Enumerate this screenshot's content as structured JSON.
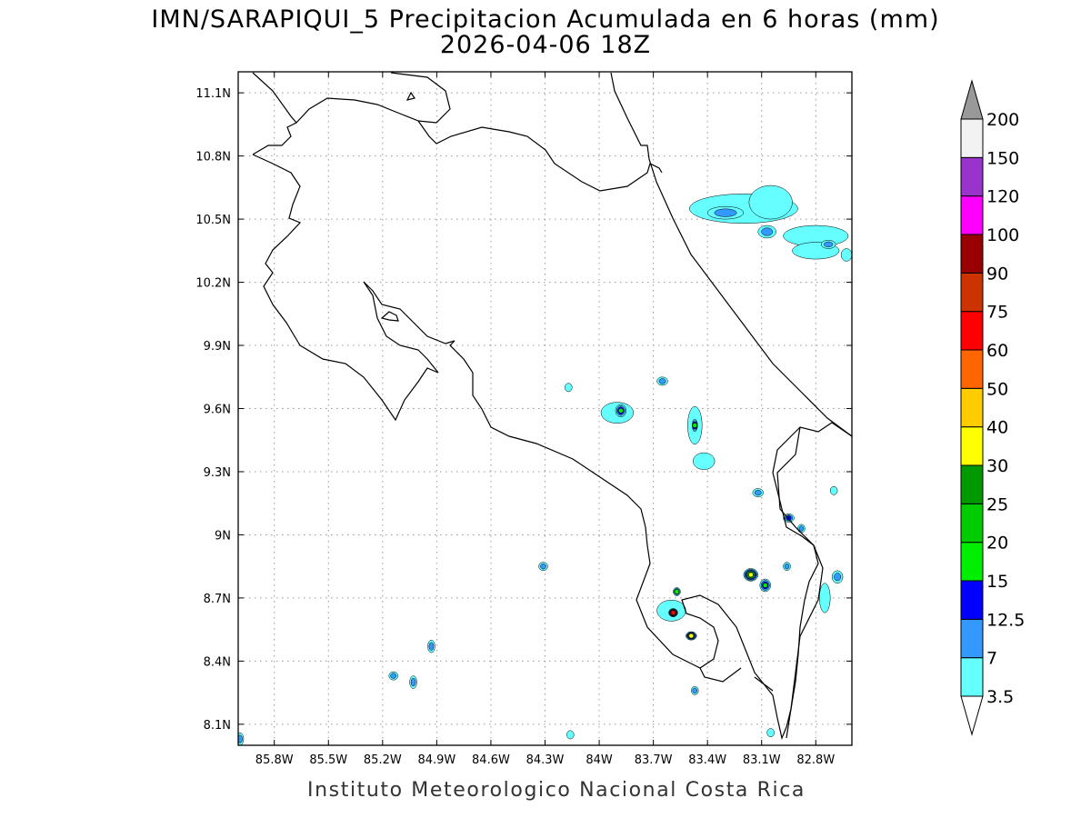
{
  "title": {
    "line1": "IMN/SARAPIQUI_5 Precipitacion Acumulada en 6 horas (mm)",
    "line2": "2026-04-06 18Z"
  },
  "credit": "Instituto Meteorologico Nacional Costa Rica",
  "map": {
    "lon_range": [
      -86.0,
      -82.6
    ],
    "lat_range": [
      8.0,
      11.2
    ],
    "lon_ticks": [
      {
        "v": -85.8,
        "label": "85.8W"
      },
      {
        "v": -85.5,
        "label": "85.5W"
      },
      {
        "v": -85.2,
        "label": "85.2W"
      },
      {
        "v": -84.9,
        "label": "84.9W"
      },
      {
        "v": -84.6,
        "label": "84.6W"
      },
      {
        "v": -84.3,
        "label": "84.3W"
      },
      {
        "v": -84.0,
        "label": "84W"
      },
      {
        "v": -83.7,
        "label": "83.7W"
      },
      {
        "v": -83.4,
        "label": "83.4W"
      },
      {
        "v": -83.1,
        "label": "83.1W"
      },
      {
        "v": -82.8,
        "label": "82.8W"
      }
    ],
    "lat_ticks": [
      {
        "v": 8.1,
        "label": "8.1N"
      },
      {
        "v": 8.4,
        "label": "8.4N"
      },
      {
        "v": 8.7,
        "label": "8.7N"
      },
      {
        "v": 9.0,
        "label": "9N"
      },
      {
        "v": 9.3,
        "label": "9.3N"
      },
      {
        "v": 9.6,
        "label": "9.6N"
      },
      {
        "v": 9.9,
        "label": "9.9N"
      },
      {
        "v": 10.2,
        "label": "10.2N"
      },
      {
        "v": 10.5,
        "label": "10.5N"
      },
      {
        "v": 10.8,
        "label": "10.8N"
      },
      {
        "v": 11.1,
        "label": "11.1N"
      }
    ],
    "grid": true
  },
  "colorbar": {
    "labels": [
      "3.5",
      "7",
      "12.5",
      "15",
      "20",
      "25",
      "30",
      "40",
      "50",
      "60",
      "75",
      "90",
      "100",
      "120",
      "150",
      "200"
    ],
    "colors": [
      "#66ffff",
      "#3399ff",
      "#0000ff",
      "#00ee00",
      "#00cc00",
      "#009900",
      "#ffff00",
      "#ffcc00",
      "#ff6600",
      "#ff0000",
      "#cc3300",
      "#990000",
      "#ff00ff",
      "#9933cc",
      "#f2f2f2",
      "#999999"
    ]
  },
  "precip_cells": [
    {
      "lon": -83.2,
      "lat": 10.55,
      "level": 0,
      "rx": 0.3,
      "ry": 0.07
    },
    {
      "lon": -83.05,
      "lat": 10.58,
      "level": 0,
      "rx": 0.12,
      "ry": 0.08
    },
    {
      "lon": -83.3,
      "lat": 10.53,
      "level": 1,
      "rx": 0.1,
      "ry": 0.03
    },
    {
      "lon": -83.07,
      "lat": 10.44,
      "level": 1,
      "rx": 0.05,
      "ry": 0.03
    },
    {
      "lon": -82.8,
      "lat": 10.42,
      "level": 0,
      "rx": 0.18,
      "ry": 0.05
    },
    {
      "lon": -82.8,
      "lat": 10.35,
      "level": 0,
      "rx": 0.13,
      "ry": 0.04
    },
    {
      "lon": -82.73,
      "lat": 10.38,
      "level": 1,
      "rx": 0.04,
      "ry": 0.02
    },
    {
      "lon": -82.63,
      "lat": 10.33,
      "level": 0,
      "rx": 0.03,
      "ry": 0.03
    },
    {
      "lon": -83.9,
      "lat": 9.58,
      "level": 0,
      "rx": 0.09,
      "ry": 0.05
    },
    {
      "lon": -83.88,
      "lat": 9.59,
      "level": 3,
      "rx": 0.03,
      "ry": 0.03
    },
    {
      "lon": -83.47,
      "lat": 9.52,
      "level": 0,
      "rx": 0.04,
      "ry": 0.09
    },
    {
      "lon": -83.47,
      "lat": 9.52,
      "level": 3,
      "rx": 0.015,
      "ry": 0.03
    },
    {
      "lon": -83.65,
      "lat": 9.73,
      "level": 1,
      "rx": 0.03,
      "ry": 0.02
    },
    {
      "lon": -84.17,
      "lat": 9.7,
      "level": 0,
      "rx": 0.02,
      "ry": 0.02
    },
    {
      "lon": -83.42,
      "lat": 9.35,
      "level": 0,
      "rx": 0.06,
      "ry": 0.04
    },
    {
      "lon": -83.12,
      "lat": 9.2,
      "level": 1,
      "rx": 0.03,
      "ry": 0.02
    },
    {
      "lon": -82.95,
      "lat": 9.08,
      "level": 2,
      "rx": 0.03,
      "ry": 0.02
    },
    {
      "lon": -82.88,
      "lat": 9.03,
      "level": 1,
      "rx": 0.02,
      "ry": 0.02
    },
    {
      "lon": -84.31,
      "lat": 8.85,
      "level": 1,
      "rx": 0.025,
      "ry": 0.02
    },
    {
      "lon": -83.6,
      "lat": 8.64,
      "level": 0,
      "rx": 0.08,
      "ry": 0.05
    },
    {
      "lon": -83.59,
      "lat": 8.63,
      "level": 9,
      "rx": 0.025,
      "ry": 0.02
    },
    {
      "lon": -83.57,
      "lat": 8.73,
      "level": 3,
      "rx": 0.02,
      "ry": 0.02
    },
    {
      "lon": -83.49,
      "lat": 8.52,
      "level": 6,
      "rx": 0.03,
      "ry": 0.02
    },
    {
      "lon": -83.16,
      "lat": 8.81,
      "level": 6,
      "rx": 0.04,
      "ry": 0.03
    },
    {
      "lon": -83.08,
      "lat": 8.76,
      "level": 3,
      "rx": 0.03,
      "ry": 0.03
    },
    {
      "lon": -82.96,
      "lat": 8.85,
      "level": 1,
      "rx": 0.02,
      "ry": 0.02
    },
    {
      "lon": -82.68,
      "lat": 8.8,
      "level": 1,
      "rx": 0.03,
      "ry": 0.03
    },
    {
      "lon": -82.75,
      "lat": 8.7,
      "level": 0,
      "rx": 0.03,
      "ry": 0.07
    },
    {
      "lon": -84.93,
      "lat": 8.47,
      "level": 1,
      "rx": 0.02,
      "ry": 0.03
    },
    {
      "lon": -85.14,
      "lat": 8.33,
      "level": 1,
      "rx": 0.025,
      "ry": 0.02
    },
    {
      "lon": -85.03,
      "lat": 8.3,
      "level": 1,
      "rx": 0.02,
      "ry": 0.03
    },
    {
      "lon": -83.47,
      "lat": 8.26,
      "level": 1,
      "rx": 0.02,
      "ry": 0.02
    },
    {
      "lon": -84.16,
      "lat": 8.05,
      "level": 0,
      "rx": 0.02,
      "ry": 0.02
    },
    {
      "lon": -85.99,
      "lat": 8.03,
      "level": 1,
      "rx": 0.02,
      "ry": 0.03
    },
    {
      "lon": -82.7,
      "lat": 9.21,
      "level": 0,
      "rx": 0.02,
      "ry": 0.02
    },
    {
      "lon": -83.05,
      "lat": 8.06,
      "level": 0,
      "rx": 0.02,
      "ry": 0.02
    }
  ]
}
